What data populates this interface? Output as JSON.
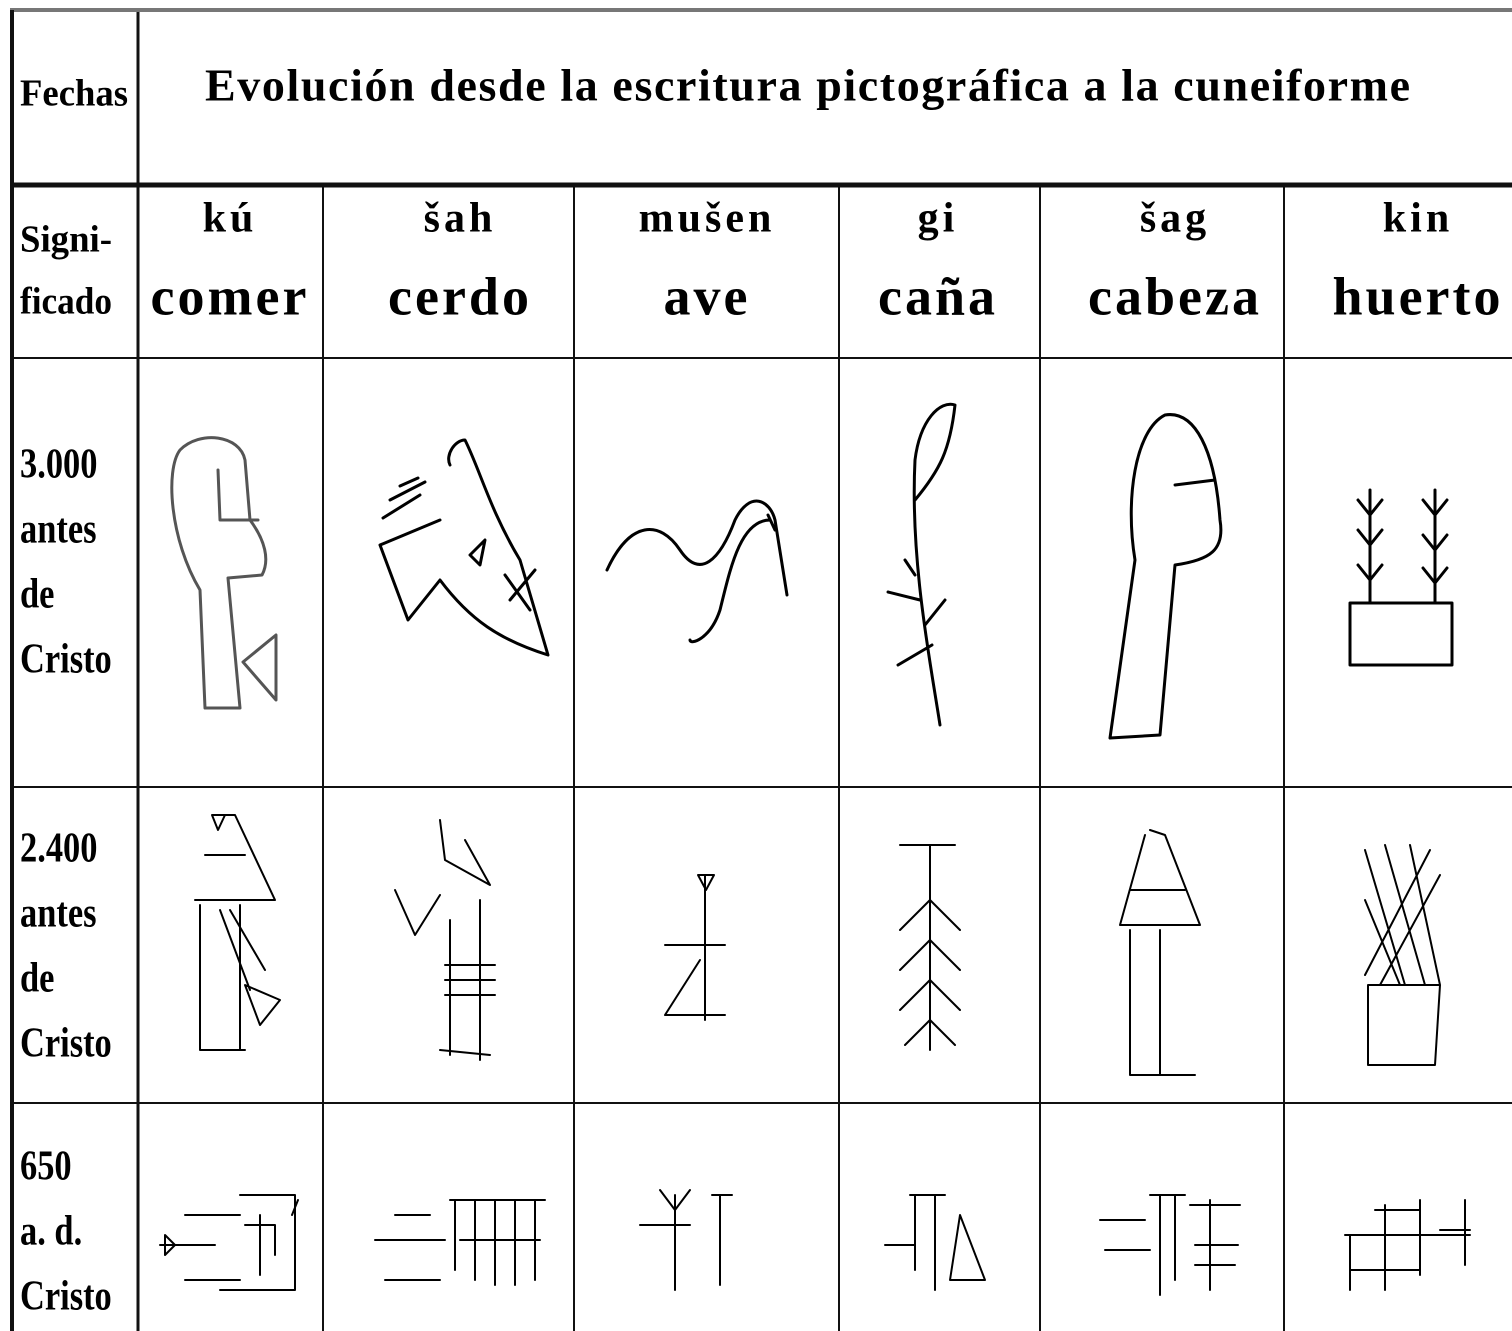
{
  "header": {
    "dates_label": "Fechas",
    "title": "Evolución desde la escritura pictográfica a la cuneiforme"
  },
  "meaning_label": [
    "Signi-",
    "ficado"
  ],
  "signs": [
    {
      "sumerian": "kú",
      "spanish": "comer"
    },
    {
      "sumerian": "šah",
      "spanish": "cerdo"
    },
    {
      "sumerian": "mušen",
      "spanish": "ave"
    },
    {
      "sumerian": "gi",
      "spanish": "caña"
    },
    {
      "sumerian": "šag",
      "spanish": "cabeza"
    },
    {
      "sumerian": "kin",
      "spanish": "huerto"
    }
  ],
  "periods": [
    [
      "3.000",
      "antes",
      "de",
      "Cristo"
    ],
    [
      "2.400",
      "antes",
      "de",
      "Cristo"
    ],
    [
      "650",
      "a. d.",
      "Cristo"
    ]
  ]
}
